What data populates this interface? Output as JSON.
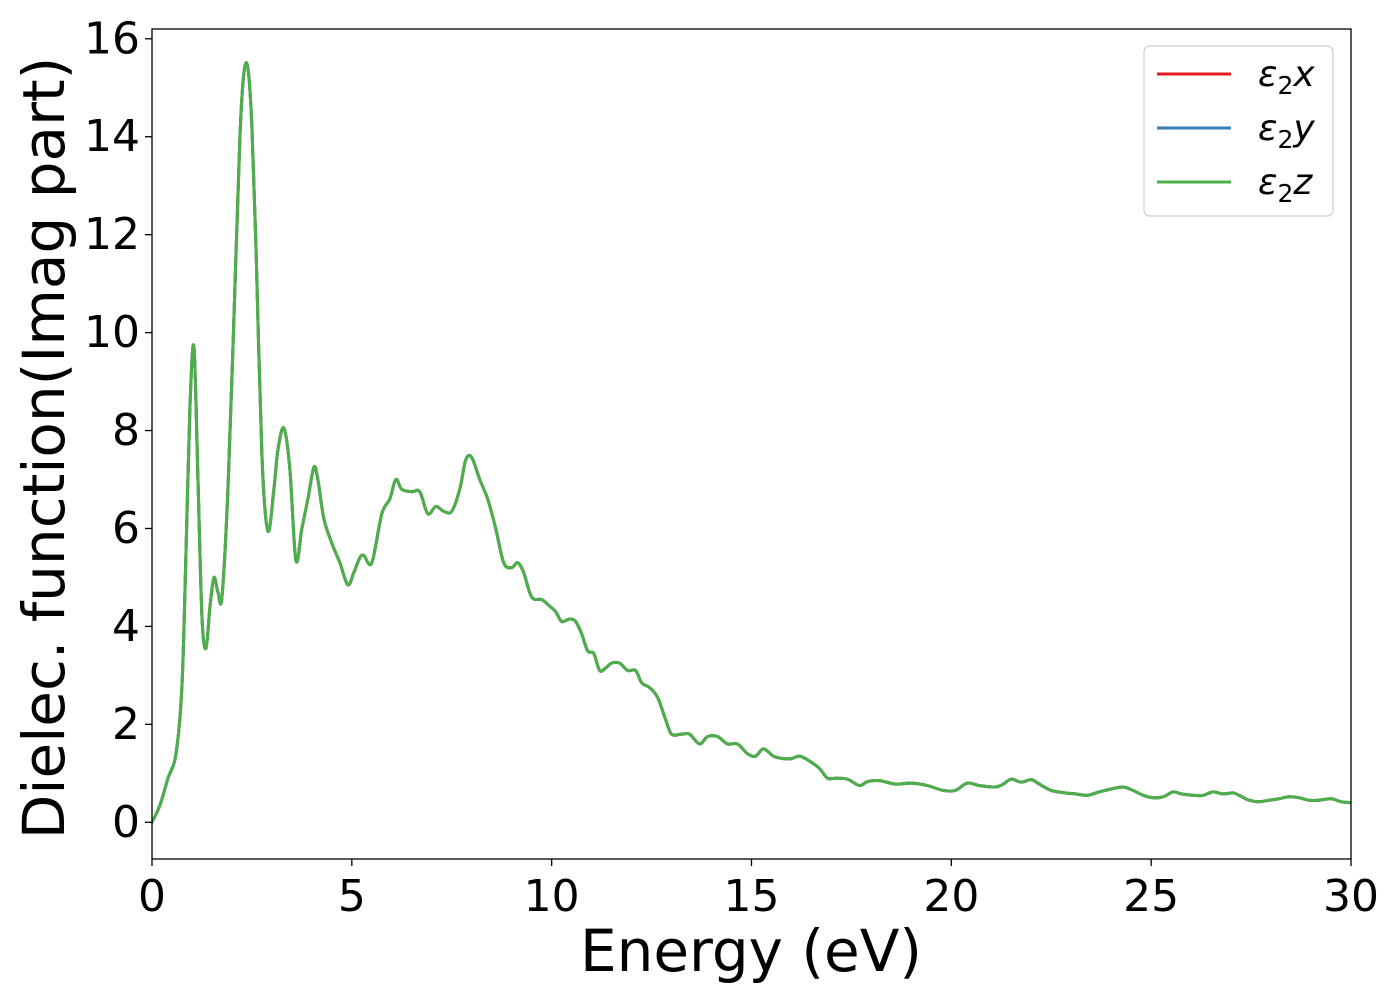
{
  "chart_data": {
    "type": "line",
    "title": "",
    "xlabel": "Energy (eV)",
    "ylabel": "Dielec. function(Imag part)",
    "xlim": [
      0,
      30
    ],
    "ylim": [
      -0.75,
      16.2
    ],
    "xticks": [
      0,
      5,
      10,
      15,
      20,
      25,
      30
    ],
    "yticks": [
      0,
      2,
      4,
      6,
      8,
      10,
      12,
      14,
      16
    ],
    "grid": false,
    "legend_position": "top-right",
    "series": [
      {
        "name": "ε₂x",
        "legend_base": "ε",
        "legend_sub": "2",
        "legend_suffix": "x",
        "color": "#e41a1c",
        "x": [
          0,
          0.2,
          0.4,
          0.6,
          0.75,
          0.85,
          0.95,
          1.05,
          1.15,
          1.25,
          1.35,
          1.45,
          1.55,
          1.65,
          1.75,
          1.9,
          2.05,
          2.2,
          2.3,
          2.4,
          2.5,
          2.6,
          2.75,
          2.9,
          3.05,
          3.15,
          3.3,
          3.45,
          3.6,
          3.75,
          3.9,
          4.05,
          4.15,
          4.3,
          4.5,
          4.7,
          4.9,
          5.05,
          5.2,
          5.3,
          5.5,
          5.75,
          5.95,
          6.1,
          6.25,
          6.5,
          6.7,
          6.9,
          7.1,
          7.3,
          7.5,
          7.7,
          7.85,
          8.0,
          8.2,
          8.4,
          8.6,
          8.8,
          9.0,
          9.15,
          9.3,
          9.5,
          9.75,
          9.9,
          10.1,
          10.25,
          10.45,
          10.6,
          10.75,
          10.9,
          11.05,
          11.2,
          11.35,
          11.5,
          11.7,
          11.9,
          12.1,
          12.25,
          12.45,
          12.65,
          12.85,
          13.0,
          13.25,
          13.45,
          13.7,
          13.9,
          14.15,
          14.4,
          14.65,
          14.9,
          15.1,
          15.3,
          15.55,
          15.8,
          16.0,
          16.2,
          16.45,
          16.7,
          16.9,
          17.1,
          17.4,
          17.7,
          17.9,
          18.2,
          18.6,
          19.0,
          19.4,
          19.8,
          20.1,
          20.4,
          20.7,
          21.1,
          21.3,
          21.5,
          21.75,
          22.0,
          22.2,
          22.5,
          22.85,
          23.1,
          23.4,
          23.7,
          24.0,
          24.3,
          24.55,
          24.8,
          25.05,
          25.3,
          25.55,
          25.75,
          26.05,
          26.3,
          26.55,
          26.8,
          27.05,
          27.2,
          27.45,
          27.7,
          27.95,
          28.2,
          28.45,
          28.7,
          28.95,
          29.2,
          29.5,
          29.75,
          30.0
        ],
        "y": [
          0.0,
          0.35,
          0.9,
          1.4,
          2.8,
          5.5,
          8.5,
          9.7,
          7.0,
          4.2,
          3.55,
          4.4,
          5.0,
          4.7,
          4.6,
          6.8,
          10.3,
          14.0,
          15.3,
          15.4,
          14.2,
          11.8,
          7.5,
          5.95,
          6.8,
          7.6,
          8.05,
          7.2,
          5.35,
          6.0,
          6.6,
          7.25,
          7.0,
          6.2,
          5.7,
          5.3,
          4.85,
          5.1,
          5.4,
          5.45,
          5.3,
          6.3,
          6.6,
          7.0,
          6.8,
          6.75,
          6.75,
          6.3,
          6.45,
          6.35,
          6.35,
          6.8,
          7.4,
          7.45,
          7.0,
          6.6,
          6.0,
          5.3,
          5.2,
          5.3,
          5.1,
          4.6,
          4.55,
          4.45,
          4.3,
          4.1,
          4.15,
          4.1,
          3.85,
          3.5,
          3.45,
          3.1,
          3.15,
          3.25,
          3.25,
          3.1,
          3.1,
          2.85,
          2.75,
          2.55,
          2.1,
          1.8,
          1.8,
          1.8,
          1.6,
          1.75,
          1.75,
          1.6,
          1.6,
          1.4,
          1.35,
          1.5,
          1.35,
          1.3,
          1.3,
          1.35,
          1.25,
          1.1,
          0.9,
          0.9,
          0.88,
          0.75,
          0.83,
          0.85,
          0.78,
          0.8,
          0.75,
          0.65,
          0.65,
          0.8,
          0.75,
          0.72,
          0.78,
          0.88,
          0.82,
          0.87,
          0.78,
          0.65,
          0.6,
          0.58,
          0.55,
          0.62,
          0.68,
          0.72,
          0.65,
          0.55,
          0.5,
          0.52,
          0.62,
          0.58,
          0.55,
          0.55,
          0.62,
          0.58,
          0.6,
          0.55,
          0.45,
          0.42,
          0.45,
          0.48,
          0.52,
          0.5,
          0.45,
          0.45,
          0.48,
          0.42,
          0.4
        ]
      },
      {
        "name": "ε₂y",
        "legend_base": "ε",
        "legend_sub": "2",
        "legend_suffix": "y",
        "color": "#377eb8",
        "x": [
          0,
          0.2,
          0.4,
          0.6,
          0.75,
          0.85,
          0.95,
          1.05,
          1.15,
          1.25,
          1.35,
          1.45,
          1.55,
          1.65,
          1.75,
          1.9,
          2.05,
          2.2,
          2.3,
          2.4,
          2.5,
          2.6,
          2.75,
          2.9,
          3.05,
          3.15,
          3.3,
          3.45,
          3.6,
          3.75,
          3.9,
          4.05,
          4.15,
          4.3,
          4.5,
          4.7,
          4.9,
          5.05,
          5.2,
          5.3,
          5.5,
          5.75,
          5.95,
          6.1,
          6.25,
          6.5,
          6.7,
          6.9,
          7.1,
          7.3,
          7.5,
          7.7,
          7.85,
          8.0,
          8.2,
          8.4,
          8.6,
          8.8,
          9.0,
          9.15,
          9.3,
          9.5,
          9.75,
          9.9,
          10.1,
          10.25,
          10.45,
          10.6,
          10.75,
          10.9,
          11.05,
          11.2,
          11.35,
          11.5,
          11.7,
          11.9,
          12.1,
          12.25,
          12.45,
          12.65,
          12.85,
          13.0,
          13.25,
          13.45,
          13.7,
          13.9,
          14.15,
          14.4,
          14.65,
          14.9,
          15.1,
          15.3,
          15.55,
          15.8,
          16.0,
          16.2,
          16.45,
          16.7,
          16.9,
          17.1,
          17.4,
          17.7,
          17.9,
          18.2,
          18.6,
          19.0,
          19.4,
          19.8,
          20.1,
          20.4,
          20.7,
          21.1,
          21.3,
          21.5,
          21.75,
          22.0,
          22.2,
          22.5,
          22.85,
          23.1,
          23.4,
          23.7,
          24.0,
          24.3,
          24.55,
          24.8,
          25.05,
          25.3,
          25.55,
          25.75,
          26.05,
          26.3,
          26.55,
          26.8,
          27.05,
          27.2,
          27.45,
          27.7,
          27.95,
          28.2,
          28.45,
          28.7,
          28.95,
          29.2,
          29.5,
          29.75,
          30.0
        ],
        "y": [
          0.0,
          0.35,
          0.9,
          1.4,
          2.8,
          5.5,
          8.5,
          9.7,
          7.0,
          4.2,
          3.55,
          4.4,
          5.0,
          4.7,
          4.6,
          6.8,
          10.3,
          14.0,
          15.3,
          15.4,
          14.2,
          11.8,
          7.5,
          5.95,
          6.8,
          7.6,
          8.05,
          7.2,
          5.35,
          6.0,
          6.6,
          7.25,
          7.0,
          6.2,
          5.7,
          5.3,
          4.85,
          5.1,
          5.4,
          5.45,
          5.3,
          6.3,
          6.6,
          7.0,
          6.8,
          6.75,
          6.75,
          6.3,
          6.45,
          6.35,
          6.35,
          6.8,
          7.4,
          7.45,
          7.0,
          6.6,
          6.0,
          5.3,
          5.2,
          5.3,
          5.1,
          4.6,
          4.55,
          4.45,
          4.3,
          4.1,
          4.15,
          4.1,
          3.85,
          3.5,
          3.45,
          3.1,
          3.15,
          3.25,
          3.25,
          3.1,
          3.1,
          2.85,
          2.75,
          2.55,
          2.1,
          1.8,
          1.8,
          1.8,
          1.6,
          1.75,
          1.75,
          1.6,
          1.6,
          1.4,
          1.35,
          1.5,
          1.35,
          1.3,
          1.3,
          1.35,
          1.25,
          1.1,
          0.9,
          0.9,
          0.88,
          0.75,
          0.83,
          0.85,
          0.78,
          0.8,
          0.75,
          0.65,
          0.65,
          0.8,
          0.75,
          0.72,
          0.78,
          0.88,
          0.82,
          0.87,
          0.78,
          0.65,
          0.6,
          0.58,
          0.55,
          0.62,
          0.68,
          0.72,
          0.65,
          0.55,
          0.5,
          0.52,
          0.62,
          0.58,
          0.55,
          0.55,
          0.62,
          0.58,
          0.6,
          0.55,
          0.45,
          0.42,
          0.45,
          0.48,
          0.52,
          0.5,
          0.45,
          0.45,
          0.48,
          0.42,
          0.4
        ]
      },
      {
        "name": "ε₂z",
        "legend_base": "ε",
        "legend_sub": "2",
        "legend_suffix": "z",
        "color": "#4daf4a",
        "x": [
          0,
          0.2,
          0.4,
          0.6,
          0.75,
          0.85,
          0.95,
          1.05,
          1.15,
          1.25,
          1.35,
          1.45,
          1.55,
          1.65,
          1.75,
          1.9,
          2.05,
          2.2,
          2.3,
          2.4,
          2.5,
          2.6,
          2.75,
          2.9,
          3.05,
          3.15,
          3.3,
          3.45,
          3.6,
          3.75,
          3.9,
          4.05,
          4.15,
          4.3,
          4.5,
          4.7,
          4.9,
          5.05,
          5.2,
          5.3,
          5.5,
          5.75,
          5.95,
          6.1,
          6.25,
          6.5,
          6.7,
          6.9,
          7.1,
          7.3,
          7.5,
          7.7,
          7.85,
          8.0,
          8.2,
          8.4,
          8.6,
          8.8,
          9.0,
          9.15,
          9.3,
          9.5,
          9.75,
          9.9,
          10.1,
          10.25,
          10.45,
          10.6,
          10.75,
          10.9,
          11.05,
          11.2,
          11.35,
          11.5,
          11.7,
          11.9,
          12.1,
          12.25,
          12.45,
          12.65,
          12.85,
          13.0,
          13.25,
          13.45,
          13.7,
          13.9,
          14.15,
          14.4,
          14.65,
          14.9,
          15.1,
          15.3,
          15.55,
          15.8,
          16.0,
          16.2,
          16.45,
          16.7,
          16.9,
          17.1,
          17.4,
          17.7,
          17.9,
          18.2,
          18.6,
          19.0,
          19.4,
          19.8,
          20.1,
          20.4,
          20.7,
          21.1,
          21.3,
          21.5,
          21.75,
          22.0,
          22.2,
          22.5,
          22.85,
          23.1,
          23.4,
          23.7,
          24.0,
          24.3,
          24.55,
          24.8,
          25.05,
          25.3,
          25.55,
          25.75,
          26.05,
          26.3,
          26.55,
          26.8,
          27.05,
          27.2,
          27.45,
          27.7,
          27.95,
          28.2,
          28.45,
          28.7,
          28.95,
          29.2,
          29.5,
          29.75,
          30.0
        ],
        "y": [
          0.0,
          0.35,
          0.9,
          1.4,
          2.8,
          5.5,
          8.5,
          9.7,
          7.0,
          4.2,
          3.55,
          4.4,
          5.0,
          4.7,
          4.6,
          6.8,
          10.3,
          14.0,
          15.3,
          15.4,
          14.2,
          11.8,
          7.5,
          5.95,
          6.8,
          7.6,
          8.05,
          7.2,
          5.35,
          6.0,
          6.6,
          7.25,
          7.0,
          6.2,
          5.7,
          5.3,
          4.85,
          5.1,
          5.4,
          5.45,
          5.3,
          6.3,
          6.6,
          7.0,
          6.8,
          6.75,
          6.75,
          6.3,
          6.45,
          6.35,
          6.35,
          6.8,
          7.4,
          7.45,
          7.0,
          6.6,
          6.0,
          5.3,
          5.2,
          5.3,
          5.1,
          4.6,
          4.55,
          4.45,
          4.3,
          4.1,
          4.15,
          4.1,
          3.85,
          3.5,
          3.45,
          3.1,
          3.15,
          3.25,
          3.25,
          3.1,
          3.1,
          2.85,
          2.75,
          2.55,
          2.1,
          1.8,
          1.8,
          1.8,
          1.6,
          1.75,
          1.75,
          1.6,
          1.6,
          1.4,
          1.35,
          1.5,
          1.35,
          1.3,
          1.3,
          1.35,
          1.25,
          1.1,
          0.9,
          0.9,
          0.88,
          0.75,
          0.83,
          0.85,
          0.78,
          0.8,
          0.75,
          0.65,
          0.65,
          0.8,
          0.75,
          0.72,
          0.78,
          0.88,
          0.82,
          0.87,
          0.78,
          0.65,
          0.6,
          0.58,
          0.55,
          0.62,
          0.68,
          0.72,
          0.65,
          0.55,
          0.5,
          0.52,
          0.62,
          0.58,
          0.55,
          0.55,
          0.62,
          0.58,
          0.6,
          0.55,
          0.45,
          0.42,
          0.45,
          0.48,
          0.52,
          0.5,
          0.45,
          0.45,
          0.48,
          0.42,
          0.4
        ]
      }
    ]
  }
}
